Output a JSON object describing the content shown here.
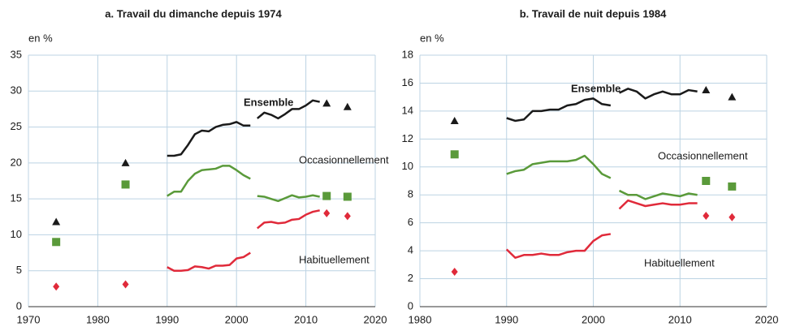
{
  "chart_data": [
    {
      "type": "line",
      "title": "a. Travail du dimanche depuis 1974",
      "y_unit": "en %",
      "xlim": [
        1970,
        2020
      ],
      "xticks": [
        1970,
        1980,
        1990,
        2000,
        2010,
        2020
      ],
      "ylim": [
        0,
        35
      ],
      "yticks": [
        0,
        5,
        10,
        15,
        20,
        25,
        30,
        35
      ],
      "grid": true,
      "series": [
        {
          "name": "Ensemble",
          "color": "#1a1a1a",
          "label_bold": true,
          "marker": "triangle",
          "segments": [
            {
              "x": [
                1990,
                1991,
                1992,
                1993,
                1994,
                1995,
                1996,
                1997,
                1998,
                1999,
                2000,
                2001,
                2002
              ],
              "values": [
                21,
                21,
                21.2,
                22.5,
                24,
                24.5,
                24.4,
                25,
                25.3,
                25.4,
                25.7,
                25.2,
                25.2
              ]
            },
            {
              "x": [
                2003,
                2004,
                2005,
                2006,
                2007,
                2008,
                2009,
                2010,
                2011,
                2012
              ],
              "values": [
                26.2,
                27,
                26.7,
                26.2,
                26.8,
                27.5,
                27.5,
                28,
                28.7,
                28.5
              ]
            }
          ],
          "marker_x": [
            1974,
            1984,
            2013,
            2016
          ],
          "marker_values": [
            11.8,
            20,
            28.3,
            27.8
          ]
        },
        {
          "name": "Occasionnellement",
          "color": "#5a9a3a",
          "label_bold": false,
          "marker": "square",
          "segments": [
            {
              "x": [
                1990,
                1991,
                1992,
                1993,
                1994,
                1995,
                1996,
                1997,
                1998,
                1999,
                2000,
                2001,
                2002
              ],
              "values": [
                15.4,
                16,
                16,
                17.5,
                18.5,
                19,
                19.1,
                19.2,
                19.6,
                19.6,
                19,
                18.3,
                17.8
              ]
            },
            {
              "x": [
                2003,
                2004,
                2005,
                2006,
                2007,
                2008,
                2009,
                2010,
                2011,
                2012
              ],
              "values": [
                15.4,
                15.3,
                15,
                14.7,
                15.1,
                15.5,
                15.2,
                15.3,
                15.5,
                15.3
              ]
            }
          ],
          "marker_x": [
            1974,
            1984,
            2013,
            2016
          ],
          "marker_values": [
            9,
            17,
            15.4,
            15.3
          ]
        },
        {
          "name": "Habituellement",
          "color": "#e02a3a",
          "label_bold": false,
          "marker": "diamond",
          "segments": [
            {
              "x": [
                1990,
                1991,
                1992,
                1993,
                1994,
                1995,
                1996,
                1997,
                1998,
                1999,
                2000,
                2001,
                2002
              ],
              "values": [
                5.5,
                5,
                5,
                5.1,
                5.6,
                5.5,
                5.3,
                5.7,
                5.7,
                5.8,
                6.7,
                6.9,
                7.5
              ]
            },
            {
              "x": [
                2003,
                2004,
                2005,
                2006,
                2007,
                2008,
                2009,
                2010,
                2011,
                2012
              ],
              "values": [
                10.9,
                11.7,
                11.8,
                11.6,
                11.7,
                12.1,
                12.2,
                12.8,
                13.2,
                13.4
              ]
            }
          ],
          "marker_x": [
            1974,
            1984,
            2013,
            2016
          ],
          "marker_values": [
            2.8,
            3.1,
            13,
            12.6
          ]
        }
      ]
    },
    {
      "type": "line",
      "title": "b. Travail de nuit depuis 1984",
      "y_unit": "en %",
      "xlim": [
        1980,
        2020
      ],
      "xticks": [
        1980,
        1990,
        2000,
        2010,
        2020
      ],
      "ylim": [
        0,
        18
      ],
      "yticks": [
        0,
        2,
        4,
        6,
        8,
        10,
        12,
        14,
        16,
        18
      ],
      "grid": true,
      "series": [
        {
          "name": "Ensemble",
          "color": "#1a1a1a",
          "label_bold": true,
          "marker": "triangle",
          "segments": [
            {
              "x": [
                1990,
                1991,
                1992,
                1993,
                1994,
                1995,
                1996,
                1997,
                1998,
                1999,
                2000,
                2001,
                2002
              ],
              "values": [
                13.5,
                13.3,
                13.4,
                14,
                14,
                14.1,
                14.1,
                14.4,
                14.5,
                14.8,
                14.9,
                14.5,
                14.4
              ]
            },
            {
              "x": [
                2003,
                2004,
                2005,
                2006,
                2007,
                2008,
                2009,
                2010,
                2011,
                2012
              ],
              "values": [
                15.3,
                15.6,
                15.4,
                14.9,
                15.2,
                15.4,
                15.2,
                15.2,
                15.5,
                15.4
              ]
            }
          ],
          "marker_x": [
            1984,
            2013,
            2016
          ],
          "marker_values": [
            13.3,
            15.5,
            15
          ]
        },
        {
          "name": "Occasionnellement",
          "color": "#5a9a3a",
          "label_bold": false,
          "marker": "square",
          "segments": [
            {
              "x": [
                1990,
                1991,
                1992,
                1993,
                1994,
                1995,
                1996,
                1997,
                1998,
                1999,
                2000,
                2001,
                2002
              ],
              "values": [
                9.5,
                9.7,
                9.8,
                10.2,
                10.3,
                10.4,
                10.4,
                10.4,
                10.5,
                10.8,
                10.2,
                9.5,
                9.2
              ]
            },
            {
              "x": [
                2003,
                2004,
                2005,
                2006,
                2007,
                2008,
                2009,
                2010,
                2011,
                2012
              ],
              "values": [
                8.3,
                8,
                8,
                7.7,
                7.9,
                8.1,
                8,
                7.9,
                8.1,
                8
              ]
            }
          ],
          "marker_x": [
            1984,
            2013,
            2016
          ],
          "marker_values": [
            10.9,
            9,
            8.6
          ]
        },
        {
          "name": "Habituellement",
          "color": "#e02a3a",
          "label_bold": false,
          "marker": "diamond",
          "segments": [
            {
              "x": [
                1990,
                1991,
                1992,
                1993,
                1994,
                1995,
                1996,
                1997,
                1998,
                1999,
                2000,
                2001,
                2002
              ],
              "values": [
                4.1,
                3.5,
                3.7,
                3.7,
                3.8,
                3.7,
                3.7,
                3.9,
                4,
                4,
                4.7,
                5.1,
                5.2
              ]
            },
            {
              "x": [
                2003,
                2004,
                2005,
                2006,
                2007,
                2008,
                2009,
                2010,
                2011,
                2012
              ],
              "values": [
                7,
                7.6,
                7.4,
                7.2,
                7.3,
                7.4,
                7.3,
                7.3,
                7.4,
                7.4
              ]
            }
          ],
          "marker_x": [
            1984,
            2013,
            2016
          ],
          "marker_values": [
            2.5,
            6.5,
            6.4
          ]
        }
      ]
    }
  ]
}
